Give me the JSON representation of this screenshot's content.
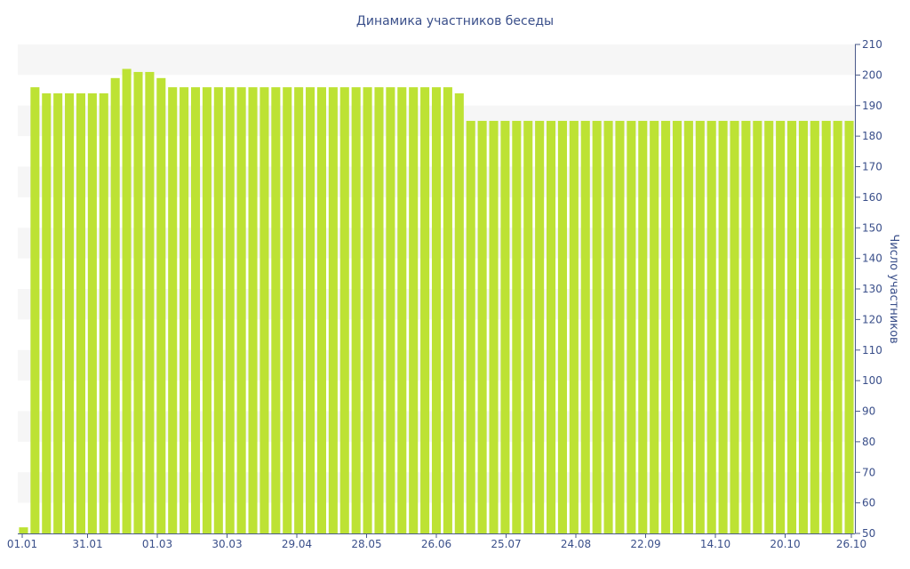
{
  "chart_data": {
    "type": "bar",
    "title": "Динамика участников беседы",
    "xlabel": "",
    "ylabel": "Число участников",
    "ylim": [
      50,
      210
    ],
    "y_ticks": [
      50,
      60,
      70,
      80,
      90,
      100,
      110,
      120,
      130,
      140,
      150,
      160,
      170,
      180,
      190,
      200,
      210
    ],
    "y_axis_side": "right",
    "grid": "alternating-bands",
    "x_tick_labels": [
      "01.01",
      "31.01",
      "01.03",
      "30.03",
      "29.04",
      "28.05",
      "26.06",
      "25.07",
      "24.08",
      "22.09",
      "14.10",
      "20.10",
      "26.10"
    ],
    "values": [
      52,
      196,
      194,
      194,
      194,
      194,
      194,
      194,
      199,
      202,
      201,
      201,
      199,
      196,
      196,
      196,
      196,
      196,
      196,
      196,
      196,
      196,
      196,
      196,
      196,
      196,
      196,
      196,
      196,
      196,
      196,
      196,
      196,
      196,
      196,
      196,
      196,
      196,
      194,
      185,
      185,
      185,
      185,
      185,
      185,
      185,
      185,
      185,
      185,
      185,
      185,
      185,
      185,
      185,
      185,
      185,
      185,
      185,
      185,
      185,
      185,
      185,
      185,
      185,
      185,
      185,
      185,
      185,
      185,
      185,
      185,
      185,
      185
    ],
    "bar_color": "#bde234"
  }
}
